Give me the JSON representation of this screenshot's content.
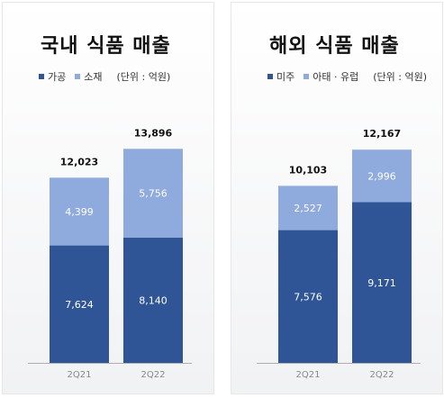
{
  "colors": {
    "dark_blue": "#2f5597",
    "light_blue": "#8faadc",
    "axis": "#b0b0b0"
  },
  "chart_data": [
    {
      "type": "bar",
      "stacked": true,
      "title": "국내 식품 매출",
      "unit_label": "(단위 : 억원)",
      "categories": [
        "2Q21",
        "2Q22"
      ],
      "series": [
        {
          "name": "가공",
          "values": [
            7624,
            8140
          ],
          "value_labels": [
            "7,624",
            "8,140"
          ],
          "color": "#2f5597"
        },
        {
          "name": "소재",
          "values": [
            4399,
            5756
          ],
          "value_labels": [
            "4,399",
            "5,756"
          ],
          "color": "#8faadc"
        }
      ],
      "totals": [
        12023,
        13896
      ],
      "total_labels": [
        "12,023",
        "13,896"
      ],
      "ylim": [
        0,
        19000
      ]
    },
    {
      "type": "bar",
      "stacked": true,
      "title": "해외 식품 매출",
      "unit_label": "(단위 : 억원)",
      "categories": [
        "2Q21",
        "2Q22"
      ],
      "series": [
        {
          "name": "미주",
          "values": [
            7576,
            9171
          ],
          "value_labels": [
            "7,576",
            "9,171"
          ],
          "color": "#2f5597"
        },
        {
          "name": "아태 · 유럽",
          "values": [
            2527,
            2996
          ],
          "value_labels": [
            "2,527",
            "2,996"
          ],
          "color": "#8faadc"
        }
      ],
      "totals": [
        10103,
        12167
      ],
      "total_labels": [
        "10,103",
        "12,167"
      ],
      "ylim": [
        0,
        16700
      ]
    }
  ]
}
